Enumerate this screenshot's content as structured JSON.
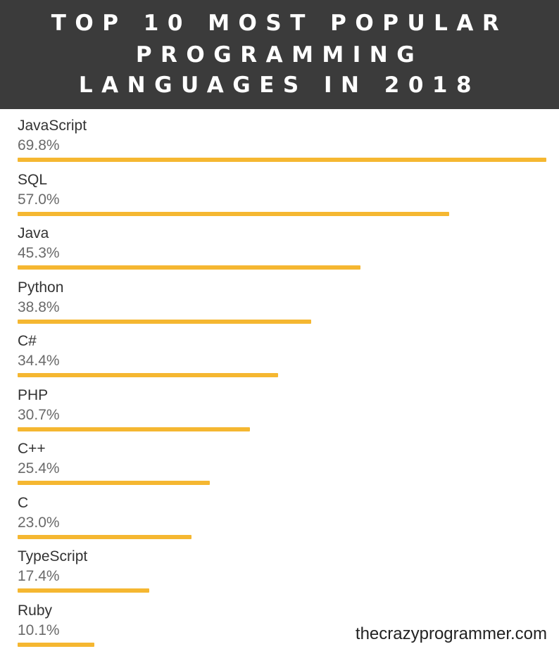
{
  "header": {
    "line1": "TOP 10 MOST POPULAR",
    "line2": "PROGRAMMING",
    "line3": "LANGUAGES IN 2018"
  },
  "colors": {
    "header_bg": "#3b3b3b",
    "bar": "#f5b731"
  },
  "chart_data": {
    "type": "bar",
    "orientation": "horizontal",
    "title": "TOP 10 MOST POPULAR PROGRAMMING LANGUAGES IN 2018",
    "categories": [
      "JavaScript",
      "SQL",
      "Java",
      "Python",
      "C#",
      "PHP",
      "C++",
      "C",
      "TypeScript",
      "Ruby"
    ],
    "values": [
      69.8,
      57.0,
      45.3,
      38.8,
      34.4,
      30.7,
      25.4,
      23.0,
      17.4,
      10.1
    ],
    "value_labels": [
      "69.8%",
      "57.0%",
      "45.3%",
      "38.8%",
      "34.4%",
      "30.7%",
      "25.4%",
      "23.0%",
      "17.4%",
      "10.1%"
    ],
    "unit": "%",
    "xlim": [
      0,
      69.8
    ],
    "grid": false,
    "legend": "none"
  },
  "footer": {
    "watermark": "thecrazyprogrammer.com"
  }
}
